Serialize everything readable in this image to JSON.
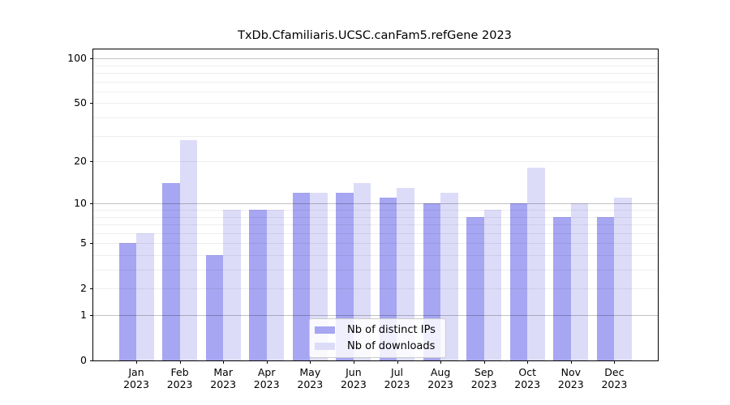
{
  "chart_data": {
    "type": "bar",
    "title": "TxDb.Cfamiliaris.UCSC.canFam5.refGene 2023",
    "categories": [
      "Jan",
      "Feb",
      "Mar",
      "Apr",
      "May",
      "Jun",
      "Jul",
      "Aug",
      "Sep",
      "Oct",
      "Nov",
      "Dec"
    ],
    "year": "2023",
    "series": [
      {
        "name": "Nb of distinct IPs",
        "color": "#a6a6f2",
        "values": [
          5,
          14,
          4,
          9,
          12,
          12,
          11,
          10,
          8,
          10,
          8,
          8
        ]
      },
      {
        "name": "Nb of downloads",
        "color": "#dcdcf9",
        "values": [
          6,
          28,
          9,
          9,
          12,
          14,
          13,
          12,
          9,
          18,
          10,
          11
        ]
      }
    ],
    "y_scale": "log1p",
    "y_axis_top_value": 115,
    "ylim": [
      0,
      115
    ],
    "y_tick_values": [
      0,
      1,
      2,
      5,
      10,
      20,
      50,
      100
    ],
    "major_gridline_values": [
      1,
      10,
      100
    ],
    "minor_gridline_values": [
      2,
      3,
      4,
      5,
      6,
      7,
      8,
      9,
      20,
      30,
      40,
      50,
      60,
      70,
      80,
      90
    ],
    "grid": true,
    "legend_position": "lower-center",
    "xlabel": "",
    "ylabel": ""
  },
  "colors": {
    "background": "#ffffff",
    "axis": "#000000",
    "bar_distinct_ips": "#a6a6f2",
    "bar_downloads": "#dcdcf9",
    "legend_border": "#cccccc"
  }
}
